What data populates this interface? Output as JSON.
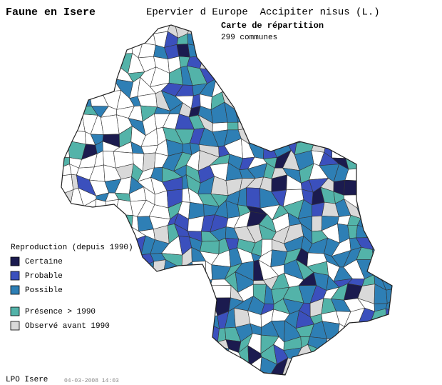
{
  "header": {
    "site": "Faune en Isere",
    "species": "Epervier d Europe  Accipiter nisus (L.)",
    "map_title": "Carte de répartition",
    "count": "299 communes"
  },
  "legend": {
    "title": "Reproduction (depuis 1990)",
    "items": [
      {
        "label": "Certaine",
        "color": "#1b1b4f"
      },
      {
        "label": "Probable",
        "color": "#3b50bd"
      },
      {
        "label": "Possible",
        "color": "#2e7fb5"
      },
      {
        "label": "Présence > 1990",
        "color": "#53b3a9"
      },
      {
        "label": "Observé avant 1990",
        "color": "#d9d9d9"
      }
    ]
  },
  "footer": {
    "org": "LPO Isere",
    "timestamp": "04-03-2008 14:03"
  }
}
